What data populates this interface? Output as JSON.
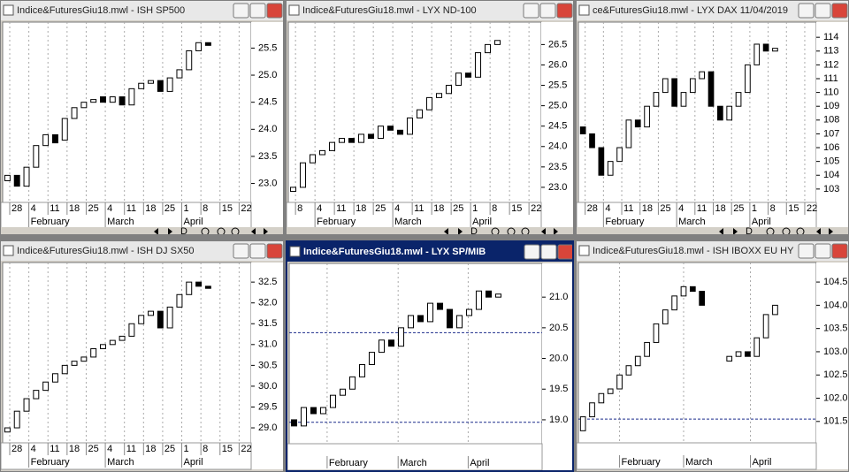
{
  "toolbar_label": "D",
  "chart_data": [
    {
      "type": "candlestick",
      "title": "Indice&FuturesGiu18.mwl - ISH SP500",
      "open": [
        23.05,
        23.15,
        22.95,
        23.3,
        23.7,
        23.9,
        23.8,
        24.2,
        24.4,
        24.5,
        24.6,
        24.5,
        24.6,
        24.45,
        24.75,
        24.85,
        24.9,
        24.7,
        24.95,
        25.1,
        25.45,
        25.6
      ],
      "close": [
        23.15,
        22.95,
        23.3,
        23.7,
        23.9,
        23.75,
        24.2,
        24.4,
        24.5,
        24.55,
        24.5,
        24.6,
        24.45,
        24.75,
        24.85,
        24.9,
        24.7,
        24.95,
        25.1,
        25.45,
        25.6,
        25.55
      ],
      "ylim": [
        22.65,
        25.98
      ],
      "xlim": [
        0,
        26
      ],
      "yticks": [
        {
          "value": 23,
          "label": "23.0"
        },
        23.5,
        {
          "value": 24,
          "label": "24.0"
        },
        24.5,
        {
          "value": 25,
          "label": "25.0"
        },
        25.5
      ],
      "xticks": [
        {
          "value": 0.74,
          "label": "28"
        },
        {
          "value": 2.74,
          "label": "4"
        },
        {
          "value": 4.74,
          "label": "11"
        },
        {
          "value": 6.74,
          "label": "18"
        },
        {
          "value": 8.74,
          "label": "25"
        },
        {
          "value": 10.74,
          "label": "4"
        },
        {
          "value": 12.74,
          "label": "11"
        },
        {
          "value": 14.74,
          "label": "18"
        },
        {
          "value": 16.74,
          "label": "25"
        },
        {
          "value": 18.74,
          "label": "1"
        },
        {
          "value": 20.74,
          "label": "8"
        },
        {
          "value": 22.74,
          "label": "15"
        },
        {
          "value": 24.74,
          "label": "22"
        }
      ],
      "months": [
        {
          "value": 2.74,
          "label": "February"
        },
        {
          "value": 10.74,
          "label": "March"
        },
        {
          "value": 18.74,
          "label": "April"
        }
      ]
    },
    {
      "type": "candlestick",
      "title": "Indice&FuturesGiu18.mwl - LYX ND-100",
      "open": [
        22.9,
        23.0,
        23.6,
        23.8,
        23.9,
        24.1,
        24.2,
        24.1,
        24.3,
        24.2,
        24.5,
        24.4,
        24.3,
        24.7,
        24.9,
        25.2,
        25.3,
        25.5,
        25.8,
        25.7,
        26.3,
        26.5
      ],
      "close": [
        23.0,
        23.6,
        23.8,
        23.9,
        24.1,
        24.2,
        24.1,
        24.3,
        24.2,
        24.5,
        24.4,
        24.3,
        24.7,
        24.9,
        25.2,
        25.3,
        25.5,
        25.8,
        25.7,
        26.3,
        26.5,
        26.6
      ],
      "ylim": [
        22.63,
        27.05
      ],
      "xlim": [
        0,
        26
      ],
      "yticks": [
        {
          "value": 23,
          "label": "23.0"
        },
        23.5,
        {
          "value": 24,
          "label": "24.0"
        },
        24.5,
        {
          "value": 25,
          "label": "25.0"
        },
        25.5,
        {
          "value": 26,
          "label": "26.0"
        },
        26.5
      ],
      "xticks": [
        {
          "value": 0.74,
          "label": "8"
        },
        {
          "value": 2.74,
          "label": "4"
        },
        {
          "value": 4.74,
          "label": "11"
        },
        {
          "value": 6.74,
          "label": "18"
        },
        {
          "value": 8.74,
          "label": "25"
        },
        {
          "value": 10.74,
          "label": "4"
        },
        {
          "value": 12.74,
          "label": "11"
        },
        {
          "value": 14.74,
          "label": "18"
        },
        {
          "value": 16.74,
          "label": "25"
        },
        {
          "value": 18.74,
          "label": "1"
        },
        {
          "value": 20.74,
          "label": "8"
        },
        {
          "value": 22.74,
          "label": "15"
        },
        {
          "value": 24.74,
          "label": "22"
        }
      ],
      "months": [
        {
          "value": 2.74,
          "label": "February"
        },
        {
          "value": 10.74,
          "label": "March"
        },
        {
          "value": 18.74,
          "label": "April"
        }
      ]
    },
    {
      "type": "candlestick",
      "title": "ce&FuturesGiu18.mwl - LYX DAX",
      "date": "11/04/2019",
      "open": [
        107.5,
        107,
        106,
        104,
        105,
        106,
        108,
        107.5,
        109,
        110,
        111,
        109,
        110,
        111,
        111.5,
        109,
        108,
        109,
        110,
        112,
        113.5,
        113
      ],
      "close": [
        107,
        106,
        104,
        105,
        106,
        108,
        107.5,
        109,
        110,
        111,
        109,
        110,
        111,
        111.5,
        109,
        108,
        109,
        110,
        112,
        113.5,
        113,
        113.2
      ],
      "ylim": [
        102.03,
        115.1
      ],
      "xlim": [
        0,
        26
      ],
      "yticks": [
        103,
        104,
        105,
        106,
        107,
        108,
        109,
        110,
        111,
        112,
        113,
        114
      ],
      "xticks": [
        {
          "value": 0.74,
          "label": "28"
        },
        {
          "value": 2.74,
          "label": "4"
        },
        {
          "value": 4.74,
          "label": "11"
        },
        {
          "value": 6.74,
          "label": "18"
        },
        {
          "value": 8.74,
          "label": "25"
        },
        {
          "value": 10.74,
          "label": "4"
        },
        {
          "value": 12.74,
          "label": "11"
        },
        {
          "value": 14.74,
          "label": "18"
        },
        {
          "value": 16.74,
          "label": "25"
        },
        {
          "value": 18.74,
          "label": "1"
        },
        {
          "value": 20.74,
          "label": "8"
        },
        {
          "value": 22.74,
          "label": "15"
        },
        {
          "value": 24.74,
          "label": "22"
        }
      ],
      "months": [
        {
          "value": 2.74,
          "label": "February"
        },
        {
          "value": 10.74,
          "label": "March"
        },
        {
          "value": 18.74,
          "label": "April"
        }
      ]
    },
    {
      "type": "candlestick",
      "title": "Indice&FuturesGiu18.mwl - ISH DJ SX50",
      "open": [
        28.9,
        29.0,
        29.4,
        29.7,
        29.9,
        30.1,
        30.3,
        30.5,
        30.6,
        30.7,
        30.9,
        31.0,
        31.1,
        31.2,
        31.5,
        31.7,
        31.8,
        31.4,
        31.9,
        32.2,
        32.5,
        32.4
      ],
      "close": [
        29.0,
        29.4,
        29.7,
        29.9,
        30.1,
        30.3,
        30.5,
        30.6,
        30.7,
        30.9,
        31.0,
        31.1,
        31.2,
        31.5,
        31.7,
        31.8,
        31.4,
        31.9,
        32.2,
        32.5,
        32.4,
        32.35
      ],
      "ylim": [
        28.64,
        32.97
      ],
      "xlim": [
        0,
        26
      ],
      "yticks": [
        {
          "value": 29,
          "label": "29.0"
        },
        29.5,
        {
          "value": 30,
          "label": "30.0"
        },
        30.5,
        {
          "value": 31,
          "label": "31.0"
        },
        31.5,
        {
          "value": 32,
          "label": "32.0"
        },
        32.5
      ],
      "xticks": [
        {
          "value": 0.74,
          "label": "28"
        },
        {
          "value": 2.74,
          "label": "4"
        },
        {
          "value": 4.74,
          "label": "11"
        },
        {
          "value": 6.74,
          "label": "18"
        },
        {
          "value": 8.74,
          "label": "25"
        },
        {
          "value": 10.74,
          "label": "4"
        },
        {
          "value": 12.74,
          "label": "11"
        },
        {
          "value": 14.74,
          "label": "18"
        },
        {
          "value": 16.74,
          "label": "25"
        },
        {
          "value": 18.74,
          "label": "1"
        },
        {
          "value": 20.74,
          "label": "8"
        },
        {
          "value": 22.74,
          "label": "15"
        },
        {
          "value": 24.74,
          "label": "22"
        }
      ],
      "months": [
        {
          "value": 2.74,
          "label": "February"
        },
        {
          "value": 10.74,
          "label": "March"
        },
        {
          "value": 18.74,
          "label": "April"
        }
      ]
    },
    {
      "type": "candlestick",
      "title": "Indice&FuturesGiu18.mwl - LYX SP/MIB",
      "active": true,
      "open": [
        19.0,
        18.9,
        19.2,
        19.1,
        19.2,
        19.4,
        19.5,
        19.7,
        19.9,
        20.1,
        20.3,
        20.2,
        20.5,
        20.7,
        20.6,
        20.9,
        20.8,
        20.5,
        20.7,
        20.8,
        21.1,
        21.0
      ],
      "close": [
        18.9,
        19.2,
        19.1,
        19.2,
        19.4,
        19.5,
        19.7,
        19.9,
        20.1,
        20.3,
        20.2,
        20.5,
        20.7,
        20.6,
        20.9,
        20.8,
        20.5,
        20.7,
        20.8,
        21.1,
        21.0,
        21.05
      ],
      "ylim": [
        18.61,
        21.55
      ],
      "xlim": [
        0,
        26
      ],
      "yticks": [
        {
          "value": 19,
          "label": "19.0"
        },
        19.5,
        {
          "value": 20,
          "label": "20.0"
        },
        20.5,
        {
          "value": 21,
          "label": "21.0"
        }
      ],
      "hlines": [
        20.42,
        18.96
      ],
      "months": [
        {
          "value": 3.9,
          "label": "February"
        },
        {
          "value": 11.2,
          "label": "March"
        },
        {
          "value": 18.4,
          "label": "April"
        }
      ]
    },
    {
      "type": "candlestick",
      "title": "Indice&FuturesGiu18.mwl - ISH IBOXX EU HY",
      "open": [
        101.3,
        101.6,
        101.9,
        102.1,
        102.2,
        102.5,
        102.7,
        102.9,
        103.2,
        103.6,
        103.9,
        104.2,
        104.4,
        104.3,
        null,
        null,
        102.8,
        102.9,
        103.0,
        102.9,
        103.3,
        103.8
      ],
      "close": [
        101.6,
        101.9,
        102.1,
        102.2,
        102.5,
        102.7,
        102.9,
        103.2,
        103.6,
        103.9,
        104.2,
        104.4,
        104.3,
        104.0,
        null,
        null,
        102.9,
        103.0,
        102.9,
        103.3,
        103.8,
        104.0
      ],
      "ylim": [
        101.04,
        104.92
      ],
      "xlim": [
        0,
        26
      ],
      "yticks": [
        101.5,
        {
          "value": 102,
          "label": "102.0"
        },
        102.5,
        {
          "value": 103,
          "label": "103.0"
        },
        103.5,
        {
          "value": 104,
          "label": "104.0"
        },
        104.5
      ],
      "hlines": [
        101.55
      ],
      "months": [
        {
          "value": 4.5,
          "label": "February"
        },
        {
          "value": 11.5,
          "label": "March"
        },
        {
          "value": 18.8,
          "label": "April"
        }
      ]
    }
  ]
}
